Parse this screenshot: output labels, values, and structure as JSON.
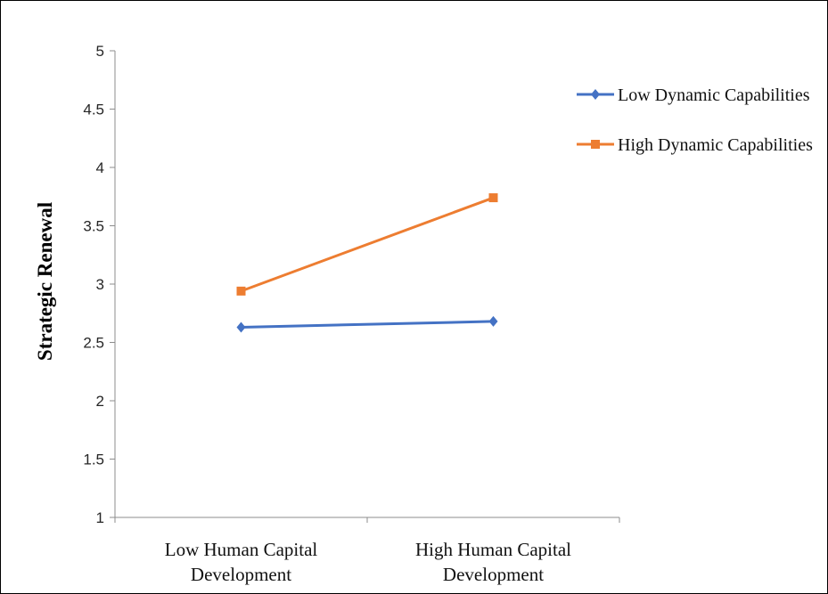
{
  "chart_data": {
    "type": "line",
    "ylabel": "Strategic Renewal",
    "xlabel": "",
    "categories": [
      "Low Human Capital Development",
      "High Human Capital Development"
    ],
    "category_lines": [
      [
        "Low Human Capital",
        "Development"
      ],
      [
        "High Human Capital",
        "Development"
      ]
    ],
    "ylim": [
      1,
      5
    ],
    "yticks": [
      1,
      1.5,
      2,
      2.5,
      3,
      3.5,
      4,
      4.5,
      5
    ],
    "ytick_labels": [
      "1",
      "1.5",
      "2",
      "2.5",
      "3",
      "3.5",
      "4",
      "4.5",
      "5"
    ],
    "grid": false,
    "legend_position": "top-right",
    "series": [
      {
        "name": "Low Dynamic Capabilities",
        "values": [
          2.63,
          2.68
        ],
        "color": "#4472C4",
        "marker": "diamond"
      },
      {
        "name": "High Dynamic Capabilities",
        "values": [
          2.94,
          3.74
        ],
        "color": "#ED7D31",
        "marker": "square"
      }
    ]
  }
}
